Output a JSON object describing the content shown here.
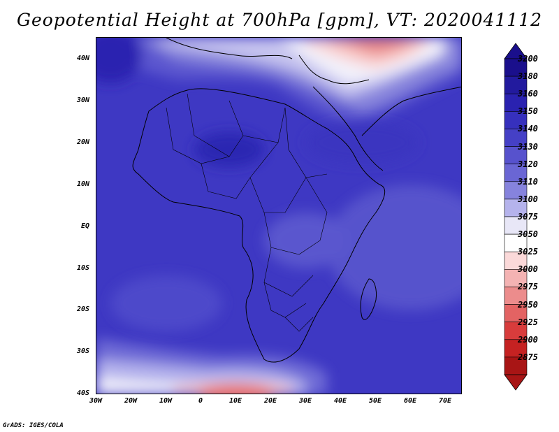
{
  "title": "Geopotential Height at 700hPa [gpm], VT: 2020041112",
  "footer": "GrADS: IGES/COLA",
  "map": {
    "region": "Africa",
    "lat_range": [
      -40,
      45
    ],
    "lon_range": [
      -30,
      75
    ],
    "lat_labels": [
      "40N",
      "30N",
      "20N",
      "10N",
      "EQ",
      "10S",
      "20S",
      "30S",
      "40S"
    ],
    "lat_values": [
      40,
      30,
      20,
      10,
      0,
      -10,
      -20,
      -30,
      -40
    ],
    "lon_labels": [
      "30W",
      "20W",
      "10W",
      "0",
      "10E",
      "20E",
      "30E",
      "40E",
      "50E",
      "60E",
      "70E"
    ],
    "lon_values": [
      -30,
      -20,
      -10,
      0,
      10,
      20,
      30,
      40,
      50,
      60,
      70
    ]
  },
  "colorbar": {
    "levels": [
      "3200",
      "3180",
      "3160",
      "3150",
      "3140",
      "3130",
      "3120",
      "3110",
      "3100",
      "3075",
      "3050",
      "3025",
      "3000",
      "2975",
      "2950",
      "2925",
      "2900",
      "2875"
    ],
    "colors": [
      "#1a0f8c",
      "#221a9e",
      "#2a22b0",
      "#3630bd",
      "#4540c6",
      "#5752cd",
      "#6a66d4",
      "#8683dd",
      "#b5b3ec",
      "#e8e7f7",
      "#ffffff",
      "#fbd9d9",
      "#f4b3b3",
      "#ec8c8c",
      "#e36363",
      "#d83c3c",
      "#c52222",
      "#a81515"
    ],
    "top_color": "#1a0f8c",
    "bottom_color": "#a81515"
  },
  "colors": {
    "high": "#2a22b0",
    "mid": "#4540c6",
    "low_light": "#d8d6f3",
    "low_red": "#e36363"
  }
}
